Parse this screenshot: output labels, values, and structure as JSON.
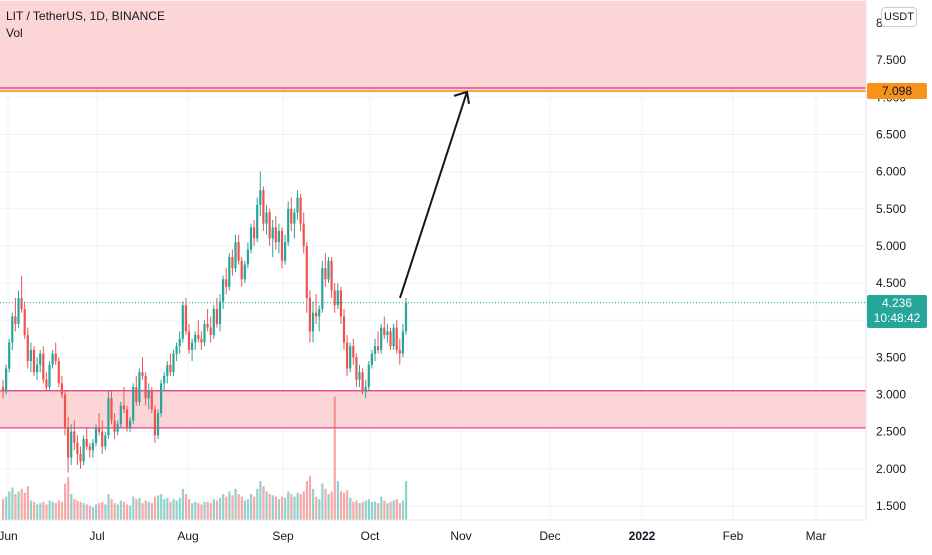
{
  "header": {
    "symbol_line": "LIT / TetherUS, 1D, BINANCE",
    "indicator": "Vol",
    "unit_label": "USDT"
  },
  "badges": {
    "target_price": "7.098",
    "last_price": "4.236",
    "countdown": "10:48:42"
  },
  "colors": {
    "up": "#26a69a",
    "down": "#ef5350",
    "zone_fill": "#fcd6d6",
    "zone_border": "#e03080",
    "target_line": "#f7931a",
    "last_price_line": "#26a69a"
  },
  "chart_data": {
    "type": "candlestick",
    "symbol": "LIT / TetherUS",
    "interval": "1D",
    "exchange": "BINANCE",
    "y_ticks": [
      "1.500",
      "2.000",
      "2.500",
      "3.000",
      "3.500",
      "4.000",
      "4.500",
      "5.000",
      "5.500",
      "6.000",
      "6.500",
      "7.000",
      "7.500",
      "8.000"
    ],
    "x_ticks": [
      "Jun",
      "Jul",
      "Aug",
      "Sep",
      "Oct",
      "Nov",
      "Dec",
      "2022",
      "Feb",
      "Mar"
    ],
    "ylim": [
      1.3,
      8.3
    ],
    "last_price": 4.236,
    "target_price": 7.098,
    "zones": [
      {
        "from": 7.098,
        "to": 8.3
      },
      {
        "from": 2.55,
        "to": 3.05
      }
    ],
    "arrow": {
      "from": {
        "date": "2021-10-20",
        "price": 4.3
      },
      "to": {
        "date": "2021-11-01",
        "price": 7.1
      }
    },
    "ohlcv": [
      [
        3.1,
        3.2,
        2.95,
        3.05,
        0.16
      ],
      [
        3.05,
        3.4,
        3.0,
        3.35,
        0.18
      ],
      [
        3.35,
        3.75,
        3.3,
        3.7,
        0.22
      ],
      [
        3.7,
        4.1,
        3.6,
        4.05,
        0.25
      ],
      [
        4.05,
        4.3,
        3.85,
        3.95,
        0.2
      ],
      [
        3.95,
        4.4,
        3.9,
        4.3,
        0.22
      ],
      [
        4.3,
        4.6,
        4.1,
        4.15,
        0.24
      ],
      [
        4.15,
        4.25,
        3.75,
        3.8,
        0.21
      ],
      [
        3.8,
        3.9,
        3.35,
        3.45,
        0.26
      ],
      [
        3.45,
        3.7,
        3.3,
        3.6,
        0.15
      ],
      [
        3.6,
        3.65,
        3.25,
        3.3,
        0.14
      ],
      [
        3.3,
        3.5,
        3.2,
        3.4,
        0.12
      ],
      [
        3.4,
        3.6,
        3.3,
        3.55,
        0.13
      ],
      [
        3.55,
        3.65,
        3.15,
        3.2,
        0.14
      ],
      [
        3.2,
        3.3,
        3.05,
        3.1,
        0.12
      ],
      [
        3.1,
        3.45,
        3.05,
        3.4,
        0.15
      ],
      [
        3.4,
        3.6,
        3.35,
        3.55,
        0.14
      ],
      [
        3.55,
        3.7,
        3.4,
        3.45,
        0.13
      ],
      [
        3.45,
        3.5,
        3.1,
        3.15,
        0.15
      ],
      [
        3.15,
        3.25,
        2.95,
        3.0,
        0.14
      ],
      [
        3.0,
        3.05,
        2.45,
        2.55,
        0.28
      ],
      [
        2.55,
        2.7,
        1.95,
        2.15,
        0.33
      ],
      [
        2.15,
        2.6,
        2.05,
        2.5,
        0.2
      ],
      [
        2.5,
        2.65,
        2.25,
        2.35,
        0.16
      ],
      [
        2.35,
        2.45,
        2.05,
        2.2,
        0.15
      ],
      [
        2.2,
        2.3,
        2.0,
        2.1,
        0.14
      ],
      [
        2.1,
        2.45,
        2.05,
        2.4,
        0.13
      ],
      [
        2.4,
        2.55,
        2.25,
        2.3,
        0.12
      ],
      [
        2.3,
        2.35,
        2.15,
        2.25,
        0.11
      ],
      [
        2.25,
        2.4,
        2.15,
        2.35,
        0.1
      ],
      [
        2.35,
        2.6,
        2.3,
        2.55,
        0.12
      ],
      [
        2.55,
        2.75,
        2.45,
        2.5,
        0.13
      ],
      [
        2.5,
        2.65,
        2.2,
        2.3,
        0.14
      ],
      [
        2.3,
        2.5,
        2.25,
        2.45,
        0.12
      ],
      [
        2.45,
        3.05,
        2.4,
        2.95,
        0.2
      ],
      [
        2.95,
        3.05,
        2.6,
        2.65,
        0.16
      ],
      [
        2.65,
        2.75,
        2.4,
        2.5,
        0.13
      ],
      [
        2.5,
        2.65,
        2.45,
        2.6,
        0.12
      ],
      [
        2.6,
        2.9,
        2.55,
        2.85,
        0.15
      ],
      [
        2.85,
        3.1,
        2.75,
        2.8,
        0.14
      ],
      [
        2.8,
        2.85,
        2.5,
        2.55,
        0.12
      ],
      [
        2.55,
        2.7,
        2.5,
        2.65,
        0.11
      ],
      [
        2.65,
        3.15,
        2.6,
        3.1,
        0.18
      ],
      [
        3.1,
        3.25,
        2.85,
        2.9,
        0.16
      ],
      [
        2.9,
        3.35,
        2.85,
        3.3,
        0.17
      ],
      [
        3.3,
        3.5,
        3.2,
        3.25,
        0.13
      ],
      [
        3.25,
        3.3,
        2.85,
        2.95,
        0.15
      ],
      [
        2.95,
        3.15,
        2.8,
        3.05,
        0.14
      ],
      [
        3.05,
        3.1,
        2.75,
        2.8,
        0.13
      ],
      [
        2.8,
        2.85,
        2.35,
        2.45,
        0.18
      ],
      [
        2.45,
        2.8,
        2.4,
        2.75,
        0.19
      ],
      [
        2.75,
        3.2,
        2.7,
        3.15,
        0.2
      ],
      [
        3.15,
        3.3,
        3.05,
        3.25,
        0.16
      ],
      [
        3.25,
        3.45,
        3.15,
        3.4,
        0.17
      ],
      [
        3.4,
        3.55,
        3.25,
        3.3,
        0.14
      ],
      [
        3.3,
        3.6,
        3.25,
        3.55,
        0.16
      ],
      [
        3.55,
        3.7,
        3.45,
        3.65,
        0.15
      ],
      [
        3.65,
        3.85,
        3.55,
        3.75,
        0.17
      ],
      [
        3.75,
        4.25,
        3.7,
        4.2,
        0.24
      ],
      [
        4.2,
        4.3,
        3.8,
        3.85,
        0.2
      ],
      [
        3.85,
        3.95,
        3.55,
        3.6,
        0.16
      ],
      [
        3.6,
        3.75,
        3.45,
        3.7,
        0.13
      ],
      [
        3.7,
        3.85,
        3.6,
        3.8,
        0.14
      ],
      [
        3.8,
        4.0,
        3.7,
        3.75,
        0.13
      ],
      [
        3.75,
        3.85,
        3.6,
        3.7,
        0.12
      ],
      [
        3.7,
        4.0,
        3.65,
        3.95,
        0.14
      ],
      [
        3.95,
        4.15,
        3.85,
        3.9,
        0.14
      ],
      [
        3.9,
        4.05,
        3.7,
        3.8,
        0.13
      ],
      [
        3.8,
        4.2,
        3.75,
        4.15,
        0.16
      ],
      [
        4.15,
        4.3,
        3.9,
        3.95,
        0.15
      ],
      [
        3.95,
        4.35,
        3.85,
        4.25,
        0.17
      ],
      [
        4.25,
        4.6,
        4.15,
        4.55,
        0.2
      ],
      [
        4.55,
        4.7,
        4.35,
        4.45,
        0.18
      ],
      [
        4.45,
        4.9,
        4.4,
        4.85,
        0.22
      ],
      [
        4.85,
        4.95,
        4.6,
        4.7,
        0.19
      ],
      [
        4.7,
        5.15,
        4.65,
        5.05,
        0.24
      ],
      [
        5.05,
        5.15,
        4.75,
        4.8,
        0.2
      ],
      [
        4.8,
        4.85,
        4.45,
        4.55,
        0.18
      ],
      [
        4.55,
        4.8,
        4.5,
        4.75,
        0.15
      ],
      [
        4.75,
        5.05,
        4.7,
        4.95,
        0.16
      ],
      [
        4.95,
        5.3,
        4.9,
        5.25,
        0.2
      ],
      [
        5.25,
        5.35,
        5.0,
        5.1,
        0.18
      ],
      [
        5.1,
        5.65,
        5.05,
        5.55,
        0.24
      ],
      [
        5.55,
        6.0,
        5.4,
        5.75,
        0.3
      ],
      [
        5.75,
        5.8,
        5.2,
        5.3,
        0.26
      ],
      [
        5.3,
        5.55,
        5.15,
        5.45,
        0.22
      ],
      [
        5.45,
        5.5,
        5.0,
        5.1,
        0.2
      ],
      [
        5.1,
        5.35,
        4.85,
        5.25,
        0.19
      ],
      [
        5.25,
        5.4,
        4.95,
        5.05,
        0.18
      ],
      [
        5.05,
        5.3,
        4.9,
        5.2,
        0.16
      ],
      [
        5.2,
        5.25,
        4.7,
        4.8,
        0.18
      ],
      [
        4.8,
        5.15,
        4.75,
        5.05,
        0.17
      ],
      [
        5.05,
        5.6,
        5.0,
        5.5,
        0.22
      ],
      [
        5.5,
        5.65,
        5.2,
        5.3,
        0.2
      ],
      [
        5.3,
        5.5,
        5.1,
        5.45,
        0.18
      ],
      [
        5.45,
        5.75,
        5.35,
        5.65,
        0.21
      ],
      [
        5.65,
        5.7,
        5.2,
        5.3,
        0.2
      ],
      [
        5.3,
        5.45,
        4.9,
        5.0,
        0.22
      ],
      [
        5.0,
        5.05,
        4.1,
        4.3,
        0.3
      ],
      [
        4.3,
        4.4,
        3.7,
        3.85,
        0.34
      ],
      [
        3.85,
        4.25,
        3.7,
        4.1,
        0.24
      ],
      [
        4.1,
        4.35,
        3.95,
        4.05,
        0.18
      ],
      [
        4.05,
        4.2,
        3.85,
        4.15,
        0.16
      ],
      [
        4.15,
        4.8,
        4.1,
        4.7,
        0.28
      ],
      [
        4.7,
        4.9,
        4.45,
        4.55,
        0.24
      ],
      [
        4.55,
        4.85,
        4.5,
        4.8,
        0.2
      ],
      [
        4.8,
        4.85,
        4.3,
        4.4,
        0.22
      ],
      [
        4.4,
        4.5,
        4.1,
        4.2,
        0.95
      ],
      [
        4.2,
        4.5,
        4.15,
        4.4,
        0.3
      ],
      [
        4.4,
        4.45,
        3.95,
        4.05,
        0.22
      ],
      [
        4.05,
        4.15,
        3.6,
        3.7,
        0.21
      ],
      [
        3.7,
        3.8,
        3.25,
        3.35,
        0.23
      ],
      [
        3.35,
        3.7,
        3.3,
        3.65,
        0.17
      ],
      [
        3.65,
        3.75,
        3.4,
        3.5,
        0.14
      ],
      [
        3.5,
        3.55,
        3.1,
        3.2,
        0.15
      ],
      [
        3.2,
        3.4,
        3.1,
        3.3,
        0.13
      ],
      [
        3.3,
        3.35,
        3.0,
        3.05,
        0.14
      ],
      [
        3.05,
        3.2,
        2.95,
        3.1,
        0.15
      ],
      [
        3.1,
        3.45,
        3.05,
        3.4,
        0.16
      ],
      [
        3.4,
        3.6,
        3.35,
        3.55,
        0.14
      ],
      [
        3.55,
        3.75,
        3.45,
        3.65,
        0.14
      ],
      [
        3.65,
        3.85,
        3.55,
        3.6,
        0.13
      ],
      [
        3.6,
        3.95,
        3.55,
        3.9,
        0.18
      ],
      [
        3.9,
        4.05,
        3.75,
        3.8,
        0.15
      ],
      [
        3.8,
        3.95,
        3.7,
        3.85,
        0.13
      ],
      [
        3.85,
        3.9,
        3.6,
        3.65,
        0.14
      ],
      [
        3.65,
        3.95,
        3.6,
        3.9,
        0.15
      ],
      [
        3.9,
        4.0,
        3.55,
        3.6,
        0.16
      ],
      [
        3.6,
        3.75,
        3.4,
        3.55,
        0.13
      ],
      [
        3.55,
        3.95,
        3.5,
        3.85,
        0.15
      ],
      [
        3.85,
        4.3,
        3.8,
        4.236,
        0.3
      ]
    ]
  }
}
